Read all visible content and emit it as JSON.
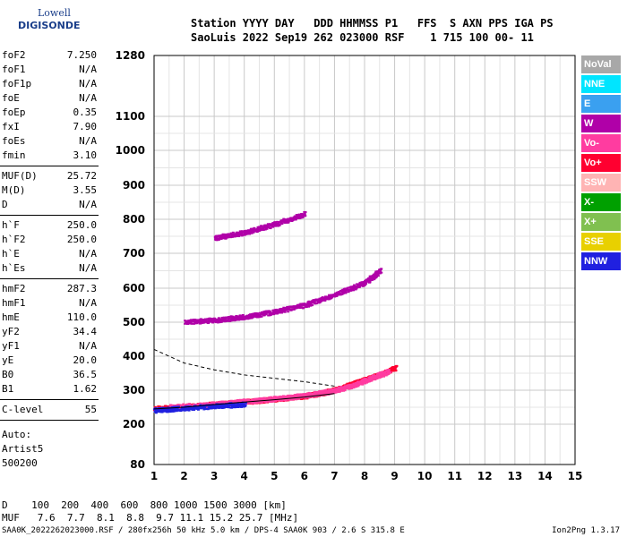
{
  "logo": {
    "line1": "Lowell",
    "line2": "DIGISONDE"
  },
  "header": {
    "labels": "Station YYYY DAY   DDD HHMMSS P1   FFS  S AXN PPS IGA PS",
    "values": "SaoLuis 2022 Sep19 262 023000 RSF    1 715 100 00- 11"
  },
  "params_top": [
    {
      "name": "foF2",
      "value": "7.250"
    },
    {
      "name": "foF1",
      "value": "N/A"
    },
    {
      "name": "foF1p",
      "value": "N/A"
    },
    {
      "name": "foE",
      "value": "N/A"
    },
    {
      "name": "foEp",
      "value": "0.35"
    },
    {
      "name": "fxI",
      "value": "7.90"
    },
    {
      "name": "foEs",
      "value": "N/A"
    },
    {
      "name": "fmin",
      "value": "3.10"
    }
  ],
  "params_mid": [
    {
      "name": "MUF(D)",
      "value": "25.72"
    },
    {
      "name": "M(D)",
      "value": "3.55"
    },
    {
      "name": "D",
      "value": "N/A"
    }
  ],
  "params_h": [
    {
      "name": "h`F",
      "value": "250.0"
    },
    {
      "name": "h`F2",
      "value": "250.0"
    },
    {
      "name": "h`E",
      "value": "N/A"
    },
    {
      "name": "h`Es",
      "value": "N/A"
    }
  ],
  "params_hm": [
    {
      "name": "hmF2",
      "value": "287.3"
    },
    {
      "name": "hmF1",
      "value": "N/A"
    },
    {
      "name": "hmE",
      "value": "110.0"
    },
    {
      "name": "yF2",
      "value": "34.4"
    },
    {
      "name": "yF1",
      "value": "N/A"
    },
    {
      "name": "yE",
      "value": "20.0"
    },
    {
      "name": "B0",
      "value": "36.5"
    },
    {
      "name": "B1",
      "value": "1.62"
    }
  ],
  "clevel": {
    "name": "C-level",
    "value": "55"
  },
  "auto": {
    "line1": "Auto:",
    "line2": "Artist5",
    "line3": "500200"
  },
  "legend": [
    {
      "label": "NoVal",
      "color": "#a8a8a8"
    },
    {
      "label": "NNE",
      "color": "#00e5ff"
    },
    {
      "label": "E",
      "color": "#3aa0f0"
    },
    {
      "label": "W",
      "color": "#b000a8"
    },
    {
      "label": "Vo-",
      "color": "#ff3ca0"
    },
    {
      "label": "Vo+",
      "color": "#ff0030"
    },
    {
      "label": "SSW",
      "color": "#ffb4b4"
    },
    {
      "label": "X-",
      "color": "#00a000"
    },
    {
      "label": "X+",
      "color": "#80c050"
    },
    {
      "label": "SSE",
      "color": "#e8d000"
    },
    {
      "label": "NNW",
      "color": "#2020e0"
    }
  ],
  "dtable": {
    "line1": "D    100  200  400  600  800 1000 1500 3000 [km]",
    "line2": "MUF   7.6  7.7  8.1  8.8  9.7 11.1 15.2 25.7 [MHz]"
  },
  "footer": {
    "left": "SAA0K_2022262023000.RSF / 280fx256h 50 kHz 5.0 km / DPS-4 SAA0K 903 / 2.6 S 315.8 E",
    "right": "Ion2Png 1.3.17"
  },
  "chart_data": {
    "type": "scatter",
    "x_ticks": [
      1,
      2,
      3,
      4,
      5,
      6,
      7,
      8,
      9,
      10,
      11,
      12,
      13,
      14,
      15
    ],
    "y_ticks": [
      80,
      200,
      300,
      400,
      500,
      600,
      700,
      800,
      900,
      1000,
      1100,
      1280
    ],
    "xlim": [
      1,
      15
    ],
    "ylim": [
      80,
      1280
    ],
    "grid": true,
    "legend_position": "right",
    "traces": [
      {
        "color": "#ff0030",
        "points": [
          [
            1.0,
            245
          ],
          [
            2.0,
            250
          ],
          [
            3.0,
            258
          ],
          [
            4.0,
            265
          ],
          [
            5.0,
            273
          ],
          [
            6.0,
            282
          ],
          [
            6.5,
            290
          ],
          [
            7.0,
            300
          ],
          [
            7.5,
            315
          ],
          [
            8.0,
            330
          ],
          [
            8.5,
            345
          ],
          [
            9.0,
            365
          ]
        ]
      },
      {
        "color": "#ff3ca0",
        "points": [
          [
            1.5,
            250
          ],
          [
            2.5,
            255
          ],
          [
            3.5,
            262
          ],
          [
            4.5,
            270
          ],
          [
            5.5,
            278
          ],
          [
            6.2,
            286
          ],
          [
            6.8,
            295
          ],
          [
            7.5,
            310
          ],
          [
            8.2,
            335
          ],
          [
            8.8,
            355
          ]
        ]
      },
      {
        "color": "#2020e0",
        "points": [
          [
            1.0,
            240
          ],
          [
            1.8,
            245
          ],
          [
            3.0,
            252
          ],
          [
            4.0,
            258
          ]
        ]
      },
      {
        "color": "#b000a8",
        "points": [
          [
            2.0,
            500
          ],
          [
            3.0,
            505
          ],
          [
            4.0,
            515
          ],
          [
            5.0,
            530
          ],
          [
            6.0,
            550
          ],
          [
            7.0,
            580
          ],
          [
            8.0,
            615
          ],
          [
            8.5,
            650
          ]
        ]
      },
      {
        "color": "#b000a8",
        "points": [
          [
            3.0,
            745
          ],
          [
            4.0,
            760
          ],
          [
            5.0,
            785
          ],
          [
            6.0,
            815
          ]
        ]
      }
    ],
    "fitted_trace": [
      [
        1.0,
        245
      ],
      [
        2.0,
        250
      ],
      [
        3.0,
        258
      ],
      [
        4.0,
        265
      ],
      [
        5.0,
        272
      ],
      [
        6.0,
        280
      ],
      [
        7.0,
        290
      ]
    ],
    "dashed_trace": [
      [
        1.0,
        420
      ],
      [
        2.0,
        380
      ],
      [
        3.0,
        360
      ],
      [
        4.0,
        345
      ],
      [
        5.0,
        335
      ],
      [
        6.0,
        325
      ],
      [
        7.0,
        312
      ]
    ]
  }
}
